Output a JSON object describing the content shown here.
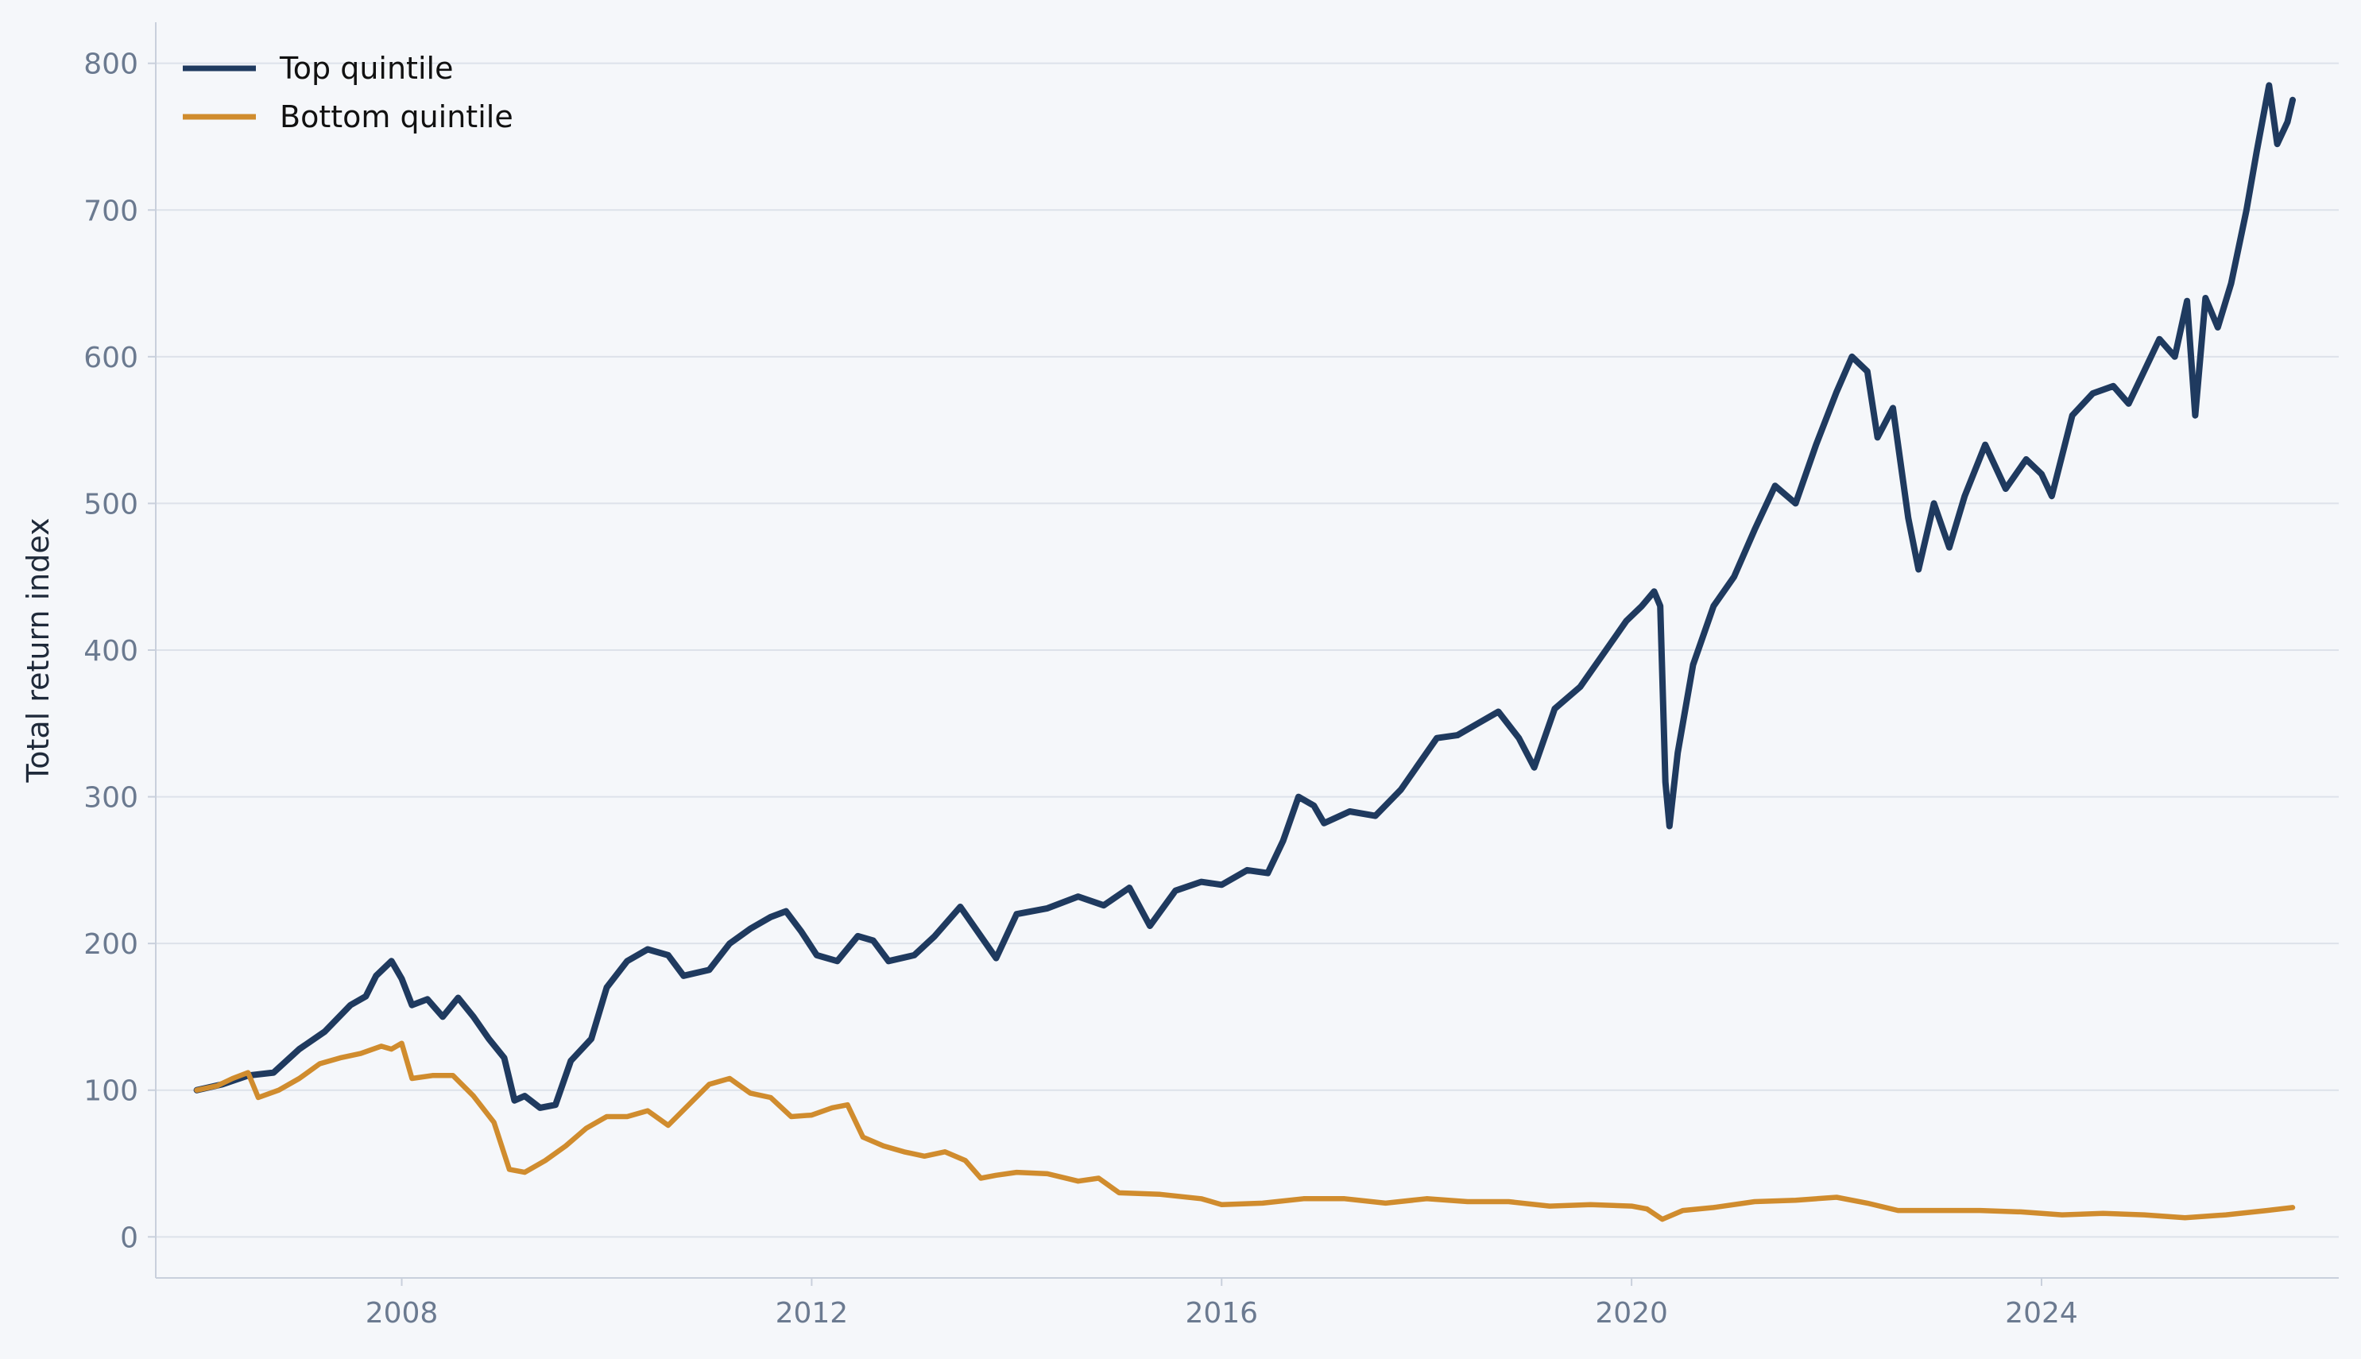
{
  "colors": {
    "background": "#f5f7fa",
    "grid": "#dde2ea",
    "axis": "#c9d0dc",
    "tick_text": "#6b7a90"
  },
  "chart_data": {
    "type": "line",
    "title": "",
    "xlabel": "",
    "ylabel": "Total return index",
    "xlim": [
      2005.6,
      2026.9
    ],
    "ylim": [
      -28,
      828
    ],
    "x_ticks": [
      2008,
      2012,
      2016,
      2020,
      2024
    ],
    "y_ticks": [
      0,
      100,
      200,
      300,
      400,
      500,
      600,
      700,
      800
    ],
    "grid": "horizontal",
    "legend_position": "top-left",
    "series": [
      {
        "name": "Top quintile",
        "color": "#1f3a5f",
        "points": [
          [
            2006.0,
            100
          ],
          [
            2006.25,
            104
          ],
          [
            2006.5,
            110
          ],
          [
            2006.75,
            112
          ],
          [
            2007.0,
            128
          ],
          [
            2007.25,
            140
          ],
          [
            2007.5,
            158
          ],
          [
            2007.65,
            164
          ],
          [
            2007.75,
            178
          ],
          [
            2007.9,
            188
          ],
          [
            2008.0,
            176
          ],
          [
            2008.1,
            158
          ],
          [
            2008.25,
            162
          ],
          [
            2008.4,
            150
          ],
          [
            2008.55,
            163
          ],
          [
            2008.7,
            150
          ],
          [
            2008.85,
            135
          ],
          [
            2009.0,
            122
          ],
          [
            2009.1,
            93
          ],
          [
            2009.2,
            96
          ],
          [
            2009.35,
            88
          ],
          [
            2009.5,
            90
          ],
          [
            2009.65,
            120
          ],
          [
            2009.85,
            135
          ],
          [
            2010.0,
            170
          ],
          [
            2010.2,
            188
          ],
          [
            2010.4,
            196
          ],
          [
            2010.6,
            192
          ],
          [
            2010.75,
            178
          ],
          [
            2011.0,
            182
          ],
          [
            2011.2,
            200
          ],
          [
            2011.4,
            210
          ],
          [
            2011.6,
            218
          ],
          [
            2011.75,
            222
          ],
          [
            2011.9,
            208
          ],
          [
            2012.05,
            192
          ],
          [
            2012.25,
            188
          ],
          [
            2012.45,
            205
          ],
          [
            2012.6,
            202
          ],
          [
            2012.75,
            188
          ],
          [
            2013.0,
            192
          ],
          [
            2013.2,
            205
          ],
          [
            2013.45,
            225
          ],
          [
            2013.65,
            205
          ],
          [
            2013.8,
            190
          ],
          [
            2014.0,
            220
          ],
          [
            2014.3,
            224
          ],
          [
            2014.6,
            232
          ],
          [
            2014.85,
            226
          ],
          [
            2015.1,
            238
          ],
          [
            2015.3,
            212
          ],
          [
            2015.55,
            236
          ],
          [
            2015.8,
            242
          ],
          [
            2016.0,
            240
          ],
          [
            2016.25,
            250
          ],
          [
            2016.45,
            248
          ],
          [
            2016.6,
            270
          ],
          [
            2016.75,
            300
          ],
          [
            2016.9,
            294
          ],
          [
            2017.0,
            282
          ],
          [
            2017.25,
            290
          ],
          [
            2017.5,
            287
          ],
          [
            2017.75,
            305
          ],
          [
            2017.9,
            320
          ],
          [
            2018.1,
            340
          ],
          [
            2018.3,
            342
          ],
          [
            2018.5,
            350
          ],
          [
            2018.7,
            358
          ],
          [
            2018.9,
            340
          ],
          [
            2019.05,
            320
          ],
          [
            2019.25,
            360
          ],
          [
            2019.5,
            375
          ],
          [
            2019.75,
            400
          ],
          [
            2019.95,
            420
          ],
          [
            2020.1,
            430
          ],
          [
            2020.22,
            440
          ],
          [
            2020.28,
            430
          ],
          [
            2020.33,
            310
          ],
          [
            2020.37,
            280
          ],
          [
            2020.45,
            330
          ],
          [
            2020.6,
            390
          ],
          [
            2020.8,
            430
          ],
          [
            2021.0,
            450
          ],
          [
            2021.2,
            482
          ],
          [
            2021.4,
            512
          ],
          [
            2021.6,
            500
          ],
          [
            2021.8,
            540
          ],
          [
            2022.0,
            576
          ],
          [
            2022.15,
            600
          ],
          [
            2022.3,
            590
          ],
          [
            2022.4,
            545
          ],
          [
            2022.55,
            565
          ],
          [
            2022.7,
            490
          ],
          [
            2022.8,
            455
          ],
          [
            2022.95,
            500
          ],
          [
            2023.1,
            470
          ],
          [
            2023.25,
            505
          ],
          [
            2023.45,
            540
          ],
          [
            2023.65,
            510
          ],
          [
            2023.85,
            530
          ],
          [
            2024.0,
            520
          ],
          [
            2024.1,
            505
          ],
          [
            2024.3,
            560
          ],
          [
            2024.5,
            575
          ],
          [
            2024.7,
            580
          ],
          [
            2024.85,
            568
          ],
          [
            2025.0,
            590
          ],
          [
            2025.15,
            612
          ],
          [
            2025.3,
            600
          ],
          [
            2025.42,
            638
          ],
          [
            2025.5,
            560
          ],
          [
            2025.6,
            640
          ],
          [
            2025.72,
            620
          ],
          [
            2025.85,
            650
          ],
          [
            2026.0,
            700
          ],
          [
            2026.1,
            740
          ],
          [
            2026.22,
            785
          ],
          [
            2026.3,
            745
          ],
          [
            2026.4,
            760
          ],
          [
            2026.45,
            775
          ]
        ]
      },
      {
        "name": "Bottom quintile",
        "color": "#d08c2e",
        "points": [
          [
            2006.0,
            100
          ],
          [
            2006.2,
            103
          ],
          [
            2006.35,
            108
          ],
          [
            2006.5,
            112
          ],
          [
            2006.6,
            95
          ],
          [
            2006.8,
            100
          ],
          [
            2007.0,
            108
          ],
          [
            2007.2,
            118
          ],
          [
            2007.4,
            122
          ],
          [
            2007.6,
            125
          ],
          [
            2007.8,
            130
          ],
          [
            2007.9,
            128
          ],
          [
            2008.0,
            132
          ],
          [
            2008.1,
            108
          ],
          [
            2008.3,
            110
          ],
          [
            2008.5,
            110
          ],
          [
            2008.7,
            96
          ],
          [
            2008.9,
            78
          ],
          [
            2009.05,
            46
          ],
          [
            2009.2,
            44
          ],
          [
            2009.4,
            52
          ],
          [
            2009.6,
            62
          ],
          [
            2009.8,
            74
          ],
          [
            2010.0,
            82
          ],
          [
            2010.2,
            82
          ],
          [
            2010.4,
            86
          ],
          [
            2010.6,
            76
          ],
          [
            2010.8,
            90
          ],
          [
            2011.0,
            104
          ],
          [
            2011.2,
            108
          ],
          [
            2011.4,
            98
          ],
          [
            2011.6,
            95
          ],
          [
            2011.8,
            82
          ],
          [
            2012.0,
            83
          ],
          [
            2012.2,
            88
          ],
          [
            2012.35,
            90
          ],
          [
            2012.5,
            68
          ],
          [
            2012.7,
            62
          ],
          [
            2012.9,
            58
          ],
          [
            2013.1,
            55
          ],
          [
            2013.3,
            58
          ],
          [
            2013.5,
            52
          ],
          [
            2013.65,
            40
          ],
          [
            2013.8,
            42
          ],
          [
            2014.0,
            44
          ],
          [
            2014.3,
            43
          ],
          [
            2014.6,
            38
          ],
          [
            2014.8,
            40
          ],
          [
            2015.0,
            30
          ],
          [
            2015.4,
            29
          ],
          [
            2015.8,
            26
          ],
          [
            2016.0,
            22
          ],
          [
            2016.4,
            23
          ],
          [
            2016.8,
            26
          ],
          [
            2017.2,
            26
          ],
          [
            2017.6,
            23
          ],
          [
            2018.0,
            26
          ],
          [
            2018.4,
            24
          ],
          [
            2018.8,
            24
          ],
          [
            2019.2,
            21
          ],
          [
            2019.6,
            22
          ],
          [
            2020.0,
            21
          ],
          [
            2020.15,
            19
          ],
          [
            2020.3,
            12
          ],
          [
            2020.5,
            18
          ],
          [
            2020.8,
            20
          ],
          [
            2021.2,
            24
          ],
          [
            2021.6,
            25
          ],
          [
            2022.0,
            27
          ],
          [
            2022.3,
            23
          ],
          [
            2022.6,
            18
          ],
          [
            2023.0,
            18
          ],
          [
            2023.4,
            18
          ],
          [
            2023.8,
            17
          ],
          [
            2024.2,
            15
          ],
          [
            2024.6,
            16
          ],
          [
            2025.0,
            15
          ],
          [
            2025.4,
            13
          ],
          [
            2025.8,
            15
          ],
          [
            2026.2,
            18
          ],
          [
            2026.45,
            20
          ]
        ]
      }
    ]
  }
}
